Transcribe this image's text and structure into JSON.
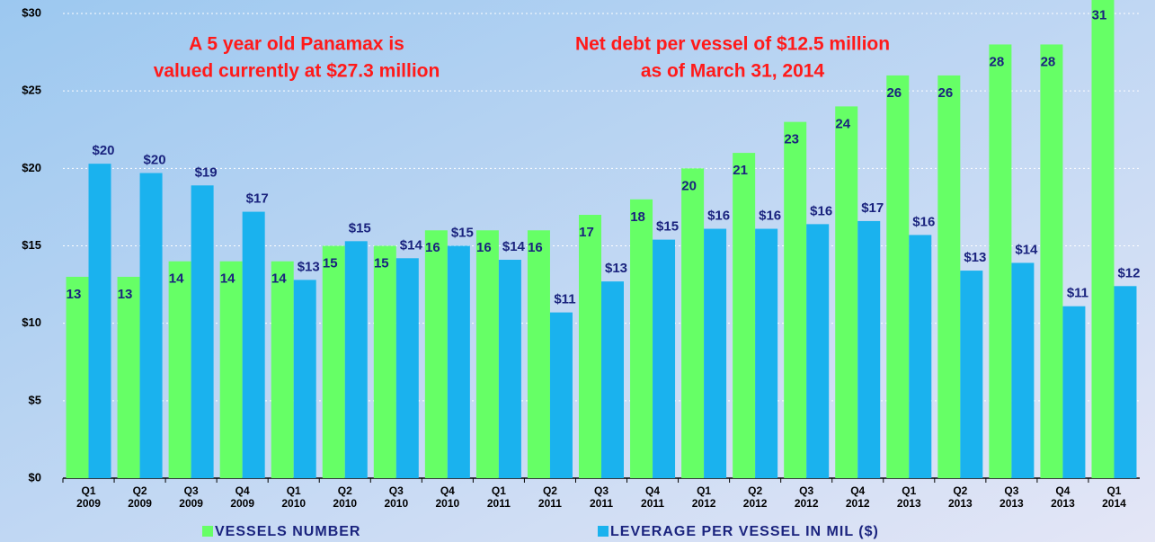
{
  "chart_data": {
    "type": "bar",
    "categories": [
      [
        "Q1",
        "2009"
      ],
      [
        "Q2",
        "2009"
      ],
      [
        "Q3",
        "2009"
      ],
      [
        "Q4",
        "2009"
      ],
      [
        "Q1",
        "2010"
      ],
      [
        "Q2",
        "2010"
      ],
      [
        "Q3",
        "2010"
      ],
      [
        "Q4",
        "2010"
      ],
      [
        "Q1",
        "2011"
      ],
      [
        "Q2",
        "2011"
      ],
      [
        "Q3",
        "2011"
      ],
      [
        "Q4",
        "2011"
      ],
      [
        "Q1",
        "2012"
      ],
      [
        "Q2",
        "2012"
      ],
      [
        "Q3",
        "2012"
      ],
      [
        "Q4",
        "2012"
      ],
      [
        "Q1",
        "2013"
      ],
      [
        "Q2",
        "2013"
      ],
      [
        "Q3",
        "2013"
      ],
      [
        "Q4",
        "2013"
      ],
      [
        "Q1",
        "2014"
      ]
    ],
    "series": [
      {
        "name": "VESSELS NUMBER",
        "color": "#66ff66",
        "values": [
          13,
          13,
          14,
          14,
          14,
          15,
          15,
          16,
          16,
          16,
          17,
          18,
          20,
          21,
          23,
          24,
          26,
          26,
          28,
          28,
          31
        ]
      },
      {
        "name": "LEVERAGE PER VESSEL IN MIL ($)",
        "color": "#1ab2ee",
        "values": [
          20.3,
          19.7,
          18.9,
          17.2,
          12.8,
          15.3,
          14.2,
          15.0,
          14.1,
          10.7,
          12.7,
          15.4,
          16.1,
          16.1,
          16.4,
          16.6,
          15.7,
          13.4,
          13.9,
          11.1,
          12.4
        ],
        "value_labels": [
          "$20",
          "$20",
          "$19",
          "$17",
          "$13",
          "$15",
          "$14",
          "$15",
          "$14",
          "$11",
          "$13",
          "$15",
          "$16",
          "$16",
          "$16",
          "$17",
          "$16",
          "$13",
          "$14",
          "$11",
          "$12"
        ]
      }
    ],
    "annotations": [
      [
        "A 5 year old Panamax is",
        "valued currently at $27.3 million"
      ],
      [
        "Net debt per vessel of $12.5 million",
        "as of March 31, 2014"
      ]
    ],
    "ylim": [
      0,
      30
    ],
    "yticks": [
      {
        "value": 0,
        "label": "$0"
      },
      {
        "value": 5,
        "label": "$5"
      },
      {
        "value": 10,
        "label": "$10"
      },
      {
        "value": 15,
        "label": "$15"
      },
      {
        "value": 20,
        "label": "$20"
      },
      {
        "value": 25,
        "label": "$25"
      },
      {
        "value": 30,
        "label": "$30"
      }
    ],
    "grid": true,
    "legend": "bottom"
  }
}
